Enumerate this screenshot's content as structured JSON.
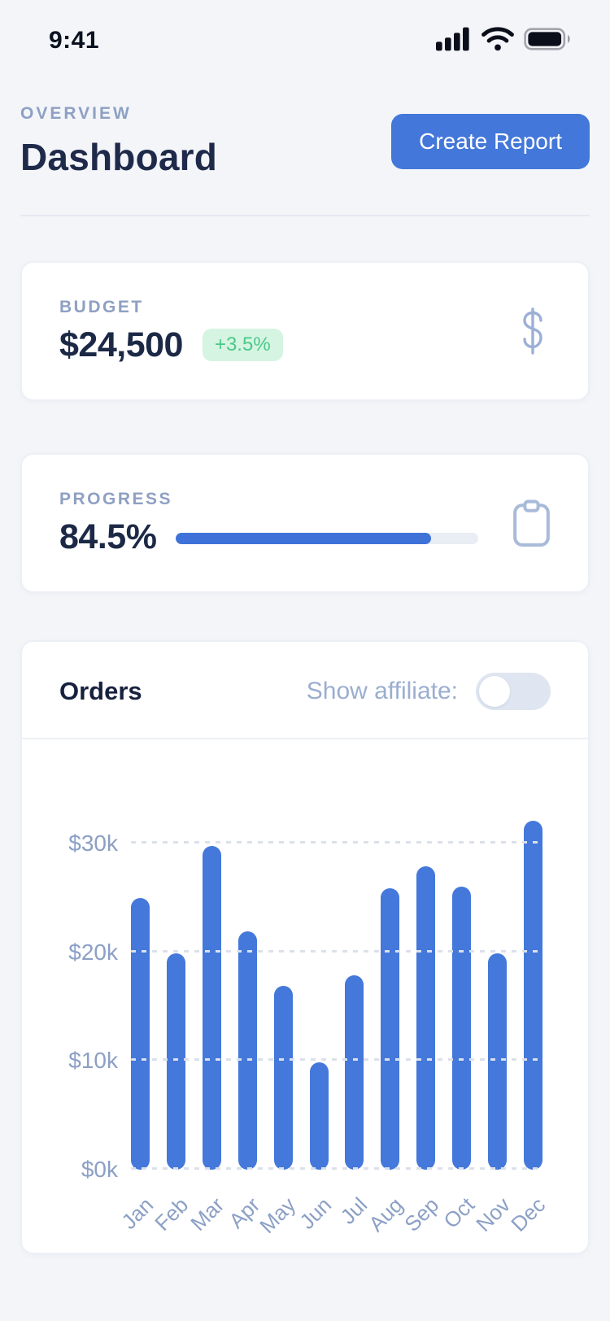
{
  "status_bar": {
    "time": "9:41",
    "icons": [
      "cellular-signal-icon",
      "wifi-icon",
      "battery-icon"
    ]
  },
  "header": {
    "eyebrow": "OVERVIEW",
    "title": "Dashboard",
    "create_report_label": "Create Report"
  },
  "budget_card": {
    "label": "BUDGET",
    "value": "$24,500",
    "delta_badge": "+3.5%",
    "icon": "dollar-icon"
  },
  "progress_card": {
    "label": "PROGRESS",
    "value": "84.5%",
    "percent": 84.5,
    "icon": "clipboard-icon"
  },
  "orders_card": {
    "title": "Orders",
    "toggle_label": "Show affiliate:",
    "toggle_state": "off"
  },
  "chart_data": {
    "type": "bar",
    "title": "Orders",
    "categories": [
      "Jan",
      "Feb",
      "Mar",
      "Apr",
      "May",
      "Jun",
      "Jul",
      "Aug",
      "Sep",
      "Oct",
      "Nov",
      "Dec"
    ],
    "values": [
      25.0,
      19.9,
      29.8,
      21.9,
      16.9,
      9.9,
      17.9,
      25.9,
      27.9,
      26.0,
      19.9,
      32.1
    ],
    "unit": "USD thousands",
    "ylabel": "",
    "xlabel": "",
    "yticks": [
      0,
      10,
      20,
      30
    ],
    "ytick_labels": [
      "$0k",
      "$10k",
      "$20k",
      "$30k"
    ],
    "ylim": [
      0,
      33
    ],
    "grid": "horizontal-dashed",
    "legend": "none",
    "bar_color": "#4478DA",
    "xtick_rotation": -45
  },
  "colors": {
    "page_bg": "#F3F5F9",
    "card_bg": "#FFFFFF",
    "card_border": "#ECF0F6",
    "accent_blue": "#4377D9",
    "bar_blue": "#4478DA",
    "progress_fill": "#3E72D8",
    "progress_track": "#E9EDF4",
    "navy_text": "#1F2A4A",
    "slate_label": "#8EA0C3",
    "muted_slate": "#9BAED0",
    "badge_green_bg": "#D6F4E2",
    "badge_green_text": "#4AC98A",
    "toggle_track": "#DFE6F1",
    "gridline": "#DBE0EA"
  }
}
